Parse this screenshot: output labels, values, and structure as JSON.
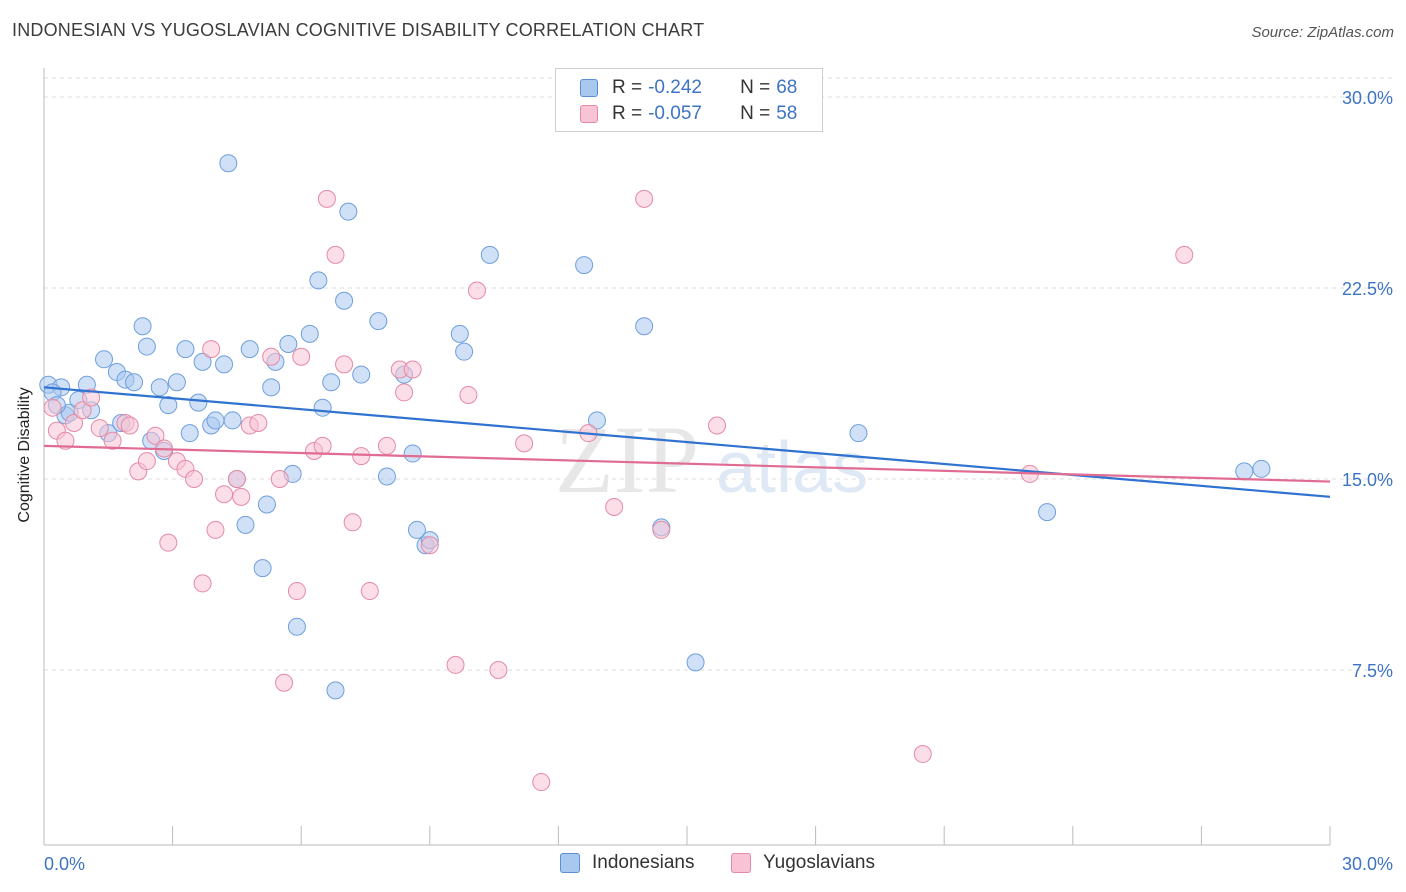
{
  "title": "INDONESIAN VS YUGOSLAVIAN COGNITIVE DISABILITY CORRELATION CHART",
  "source": "Source: ZipAtlas.com",
  "watermark": {
    "zip": "ZIP",
    "atlas": "atlas"
  },
  "legend_stats": [
    {
      "r_label": "R = ",
      "r_value": "-0.242",
      "n_label": "N = ",
      "n_value": "68",
      "color": "#a9c8f0",
      "border": "#5b8fd6"
    },
    {
      "r_label": "R = ",
      "r_value": "-0.057",
      "n_label": "N = ",
      "n_value": "58",
      "color": "#f8c3d4",
      "border": "#e58aa6"
    }
  ],
  "bottom_legend": [
    "Indonesians",
    "Yugoslavians"
  ],
  "chart_data": {
    "type": "scatter",
    "title": "INDONESIAN VS YUGOSLAVIAN COGNITIVE DISABILITY CORRELATION CHART",
    "xlabel": "",
    "ylabel": "Cognitive Disability",
    "xlim": [
      0,
      30
    ],
    "ylim": [
      0,
      31
    ],
    "x_tick_labels": [
      "0.0%",
      "30.0%"
    ],
    "y_ticks": [
      7.5,
      15.0,
      22.5,
      30.0
    ],
    "y_tick_labels": [
      "7.5%",
      "15.0%",
      "22.5%",
      "30.0%"
    ],
    "grid": "horizontal dashed",
    "legend_position": "top-center",
    "series": [
      {
        "name": "Indonesians",
        "color": "#a9c8f0",
        "edge": "#6e9fdc",
        "trend": {
          "color": "#2f72d0",
          "x": [
            0,
            30
          ],
          "y": [
            18.6,
            14.3
          ]
        },
        "points": [
          [
            0.1,
            18.7
          ],
          [
            0.4,
            18.6
          ],
          [
            0.5,
            17.5
          ],
          [
            0.6,
            17.6
          ],
          [
            0.8,
            18.1
          ],
          [
            1.0,
            18.7
          ],
          [
            1.1,
            17.7
          ],
          [
            1.4,
            19.7
          ],
          [
            1.5,
            16.8
          ],
          [
            1.7,
            19.2
          ],
          [
            1.8,
            17.2
          ],
          [
            1.9,
            18.9
          ],
          [
            2.1,
            18.8
          ],
          [
            2.3,
            21.0
          ],
          [
            2.4,
            20.2
          ],
          [
            2.5,
            16.5
          ],
          [
            2.7,
            18.6
          ],
          [
            2.8,
            16.1
          ],
          [
            2.9,
            17.9
          ],
          [
            3.1,
            18.8
          ],
          [
            3.3,
            20.1
          ],
          [
            3.4,
            16.8
          ],
          [
            3.6,
            18.0
          ],
          [
            3.7,
            19.6
          ],
          [
            3.9,
            17.1
          ],
          [
            4.0,
            17.3
          ],
          [
            4.2,
            19.5
          ],
          [
            4.3,
            27.4
          ],
          [
            4.4,
            17.3
          ],
          [
            4.5,
            15.0
          ],
          [
            4.7,
            13.2
          ],
          [
            4.8,
            20.1
          ],
          [
            5.1,
            11.5
          ],
          [
            5.2,
            14.0
          ],
          [
            5.3,
            18.6
          ],
          [
            5.4,
            19.6
          ],
          [
            5.7,
            20.3
          ],
          [
            5.8,
            15.2
          ],
          [
            5.9,
            9.2
          ],
          [
            6.2,
            20.7
          ],
          [
            6.4,
            22.8
          ],
          [
            6.5,
            17.8
          ],
          [
            6.7,
            18.8
          ],
          [
            6.8,
            6.7
          ],
          [
            7.0,
            22.0
          ],
          [
            7.1,
            25.5
          ],
          [
            7.4,
            19.1
          ],
          [
            7.8,
            21.2
          ],
          [
            8.0,
            15.1
          ],
          [
            8.4,
            19.1
          ],
          [
            8.6,
            16.0
          ],
          [
            8.7,
            13.0
          ],
          [
            8.9,
            12.4
          ],
          [
            9.0,
            12.6
          ],
          [
            9.7,
            20.7
          ],
          [
            9.8,
            20.0
          ],
          [
            10.4,
            23.8
          ],
          [
            12.6,
            23.4
          ],
          [
            12.9,
            17.3
          ],
          [
            14.0,
            21.0
          ],
          [
            14.4,
            13.1
          ],
          [
            15.2,
            7.8
          ],
          [
            19.0,
            16.8
          ],
          [
            23.4,
            13.7
          ],
          [
            28.0,
            15.3
          ],
          [
            28.4,
            15.4
          ],
          [
            0.2,
            18.4
          ],
          [
            0.3,
            17.9
          ]
        ]
      },
      {
        "name": "Yugoslavians",
        "color": "#f8c3d4",
        "edge": "#e58aa6",
        "trend": {
          "color": "#e06b93",
          "x": [
            0,
            30
          ],
          "y": [
            16.3,
            14.9
          ]
        },
        "points": [
          [
            0.2,
            17.8
          ],
          [
            0.3,
            16.9
          ],
          [
            0.5,
            16.5
          ],
          [
            0.7,
            17.2
          ],
          [
            0.9,
            17.7
          ],
          [
            1.1,
            18.2
          ],
          [
            1.3,
            17.0
          ],
          [
            1.6,
            16.5
          ],
          [
            1.9,
            17.2
          ],
          [
            2.0,
            17.1
          ],
          [
            2.2,
            15.3
          ],
          [
            2.4,
            15.7
          ],
          [
            2.6,
            16.7
          ],
          [
            2.8,
            16.2
          ],
          [
            2.9,
            12.5
          ],
          [
            3.1,
            15.7
          ],
          [
            3.3,
            15.4
          ],
          [
            3.5,
            15.0
          ],
          [
            3.7,
            10.9
          ],
          [
            3.9,
            20.1
          ],
          [
            4.0,
            13.0
          ],
          [
            4.2,
            14.4
          ],
          [
            4.5,
            15.0
          ],
          [
            4.6,
            14.3
          ],
          [
            4.8,
            17.1
          ],
          [
            5.0,
            17.2
          ],
          [
            5.3,
            19.8
          ],
          [
            5.5,
            15.0
          ],
          [
            5.6,
            7.0
          ],
          [
            5.9,
            10.6
          ],
          [
            6.0,
            19.8
          ],
          [
            6.3,
            16.1
          ],
          [
            6.5,
            16.3
          ],
          [
            6.6,
            26.0
          ],
          [
            6.8,
            23.8
          ],
          [
            7.0,
            19.5
          ],
          [
            7.2,
            13.3
          ],
          [
            7.4,
            15.9
          ],
          [
            7.6,
            10.6
          ],
          [
            8.0,
            16.3
          ],
          [
            8.3,
            19.3
          ],
          [
            8.4,
            18.4
          ],
          [
            8.6,
            19.3
          ],
          [
            9.6,
            7.7
          ],
          [
            9.9,
            18.3
          ],
          [
            10.1,
            22.4
          ],
          [
            10.6,
            7.5
          ],
          [
            11.2,
            16.4
          ],
          [
            11.6,
            3.1
          ],
          [
            12.7,
            16.8
          ],
          [
            13.3,
            13.9
          ],
          [
            14.0,
            26.0
          ],
          [
            14.4,
            13.0
          ],
          [
            15.7,
            17.1
          ],
          [
            20.5,
            4.2
          ],
          [
            23.0,
            15.2
          ],
          [
            26.6,
            23.8
          ],
          [
            9.0,
            12.4
          ]
        ]
      }
    ]
  }
}
